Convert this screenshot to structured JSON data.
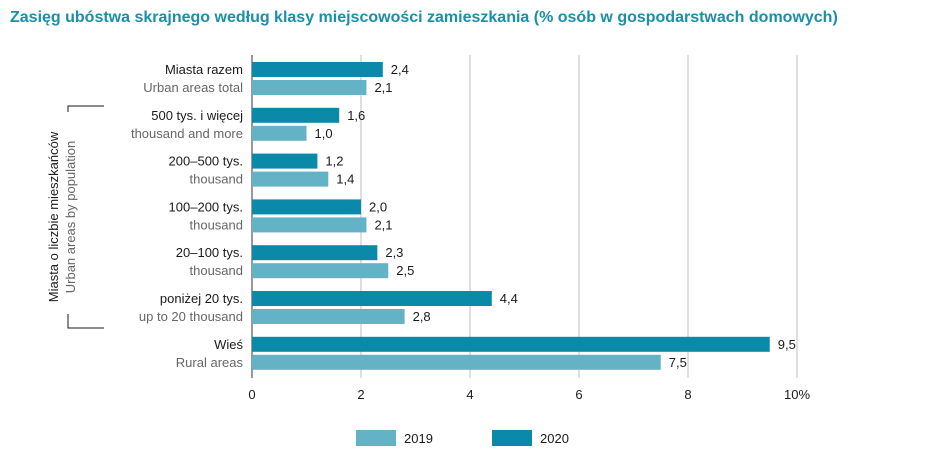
{
  "colors": {
    "title": "#1a8fa8",
    "s2019": "#64b2c6",
    "s2020": "#0a8aa8",
    "grid": "#bfbfbf",
    "axis": "#333333"
  },
  "chart_data": {
    "type": "bar",
    "orientation": "horizontal",
    "title": "Zasięg ubóstwa skrajnego według klasy miejscowości zamieszkania (% osób w gospodarstwach domowych)",
    "categories": [
      {
        "pl": "Miasta razem",
        "en": "Urban areas total"
      },
      {
        "pl": "500 tys. i więcej",
        "en": "thousand and more"
      },
      {
        "pl": "200–500 tys.",
        "en": "thousand"
      },
      {
        "pl": "100–200 tys.",
        "en": "thousand"
      },
      {
        "pl": "20–100 tys.",
        "en": "thousand"
      },
      {
        "pl": "poniżej 20 tys.",
        "en": "up to 20 thousand"
      },
      {
        "pl": "Wieś",
        "en": "Rural areas"
      }
    ],
    "series": [
      {
        "name": "2020",
        "values": [
          2.4,
          1.6,
          1.2,
          2.0,
          2.3,
          4.4,
          9.5
        ],
        "labels": [
          "2,4",
          "1,6",
          "1,2",
          "2,0",
          "2,3",
          "4,4",
          "9,5"
        ]
      },
      {
        "name": "2019",
        "values": [
          2.1,
          1.0,
          1.4,
          2.1,
          2.5,
          2.8,
          7.5
        ],
        "labels": [
          "2,1",
          "1,0",
          "1,4",
          "2,1",
          "2,5",
          "2,8",
          "7,5"
        ]
      }
    ],
    "xlim": [
      0,
      10
    ],
    "xticks": [
      0,
      2,
      4,
      6,
      8,
      10
    ],
    "xtick_labels": [
      "0",
      "2",
      "4",
      "6",
      "8",
      "10%"
    ],
    "grid": true,
    "group_label": {
      "pl": "Miasta o liczbie mieszkańców",
      "en": "Urban areas by population"
    },
    "legend": {
      "position": "bottom",
      "order": [
        "2019",
        "2020"
      ]
    }
  }
}
